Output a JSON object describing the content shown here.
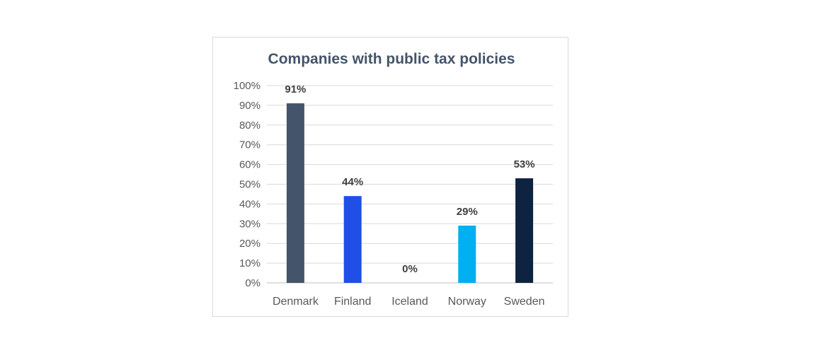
{
  "chart_data": {
    "type": "bar",
    "title": "Companies with public tax policies",
    "categories": [
      "Denmark",
      "Finland",
      "Iceland",
      "Norway",
      "Sweden"
    ],
    "values": [
      91,
      44,
      0,
      29,
      53
    ],
    "data_labels": [
      "91%",
      "44%",
      "0%",
      "29%",
      "53%"
    ],
    "colors": [
      "#44546a",
      "#1f4fe6",
      "#4472c4",
      "#00b0f0",
      "#0e2340"
    ],
    "ylim": [
      0,
      100
    ],
    "yticks": [
      0,
      10,
      20,
      30,
      40,
      50,
      60,
      70,
      80,
      90,
      100
    ],
    "ytick_labels": [
      "0%",
      "10%",
      "20%",
      "30%",
      "40%",
      "50%",
      "60%",
      "70%",
      "80%",
      "90%",
      "100%"
    ],
    "xlabel": "",
    "ylabel": "",
    "grid": true,
    "legend": "none"
  }
}
